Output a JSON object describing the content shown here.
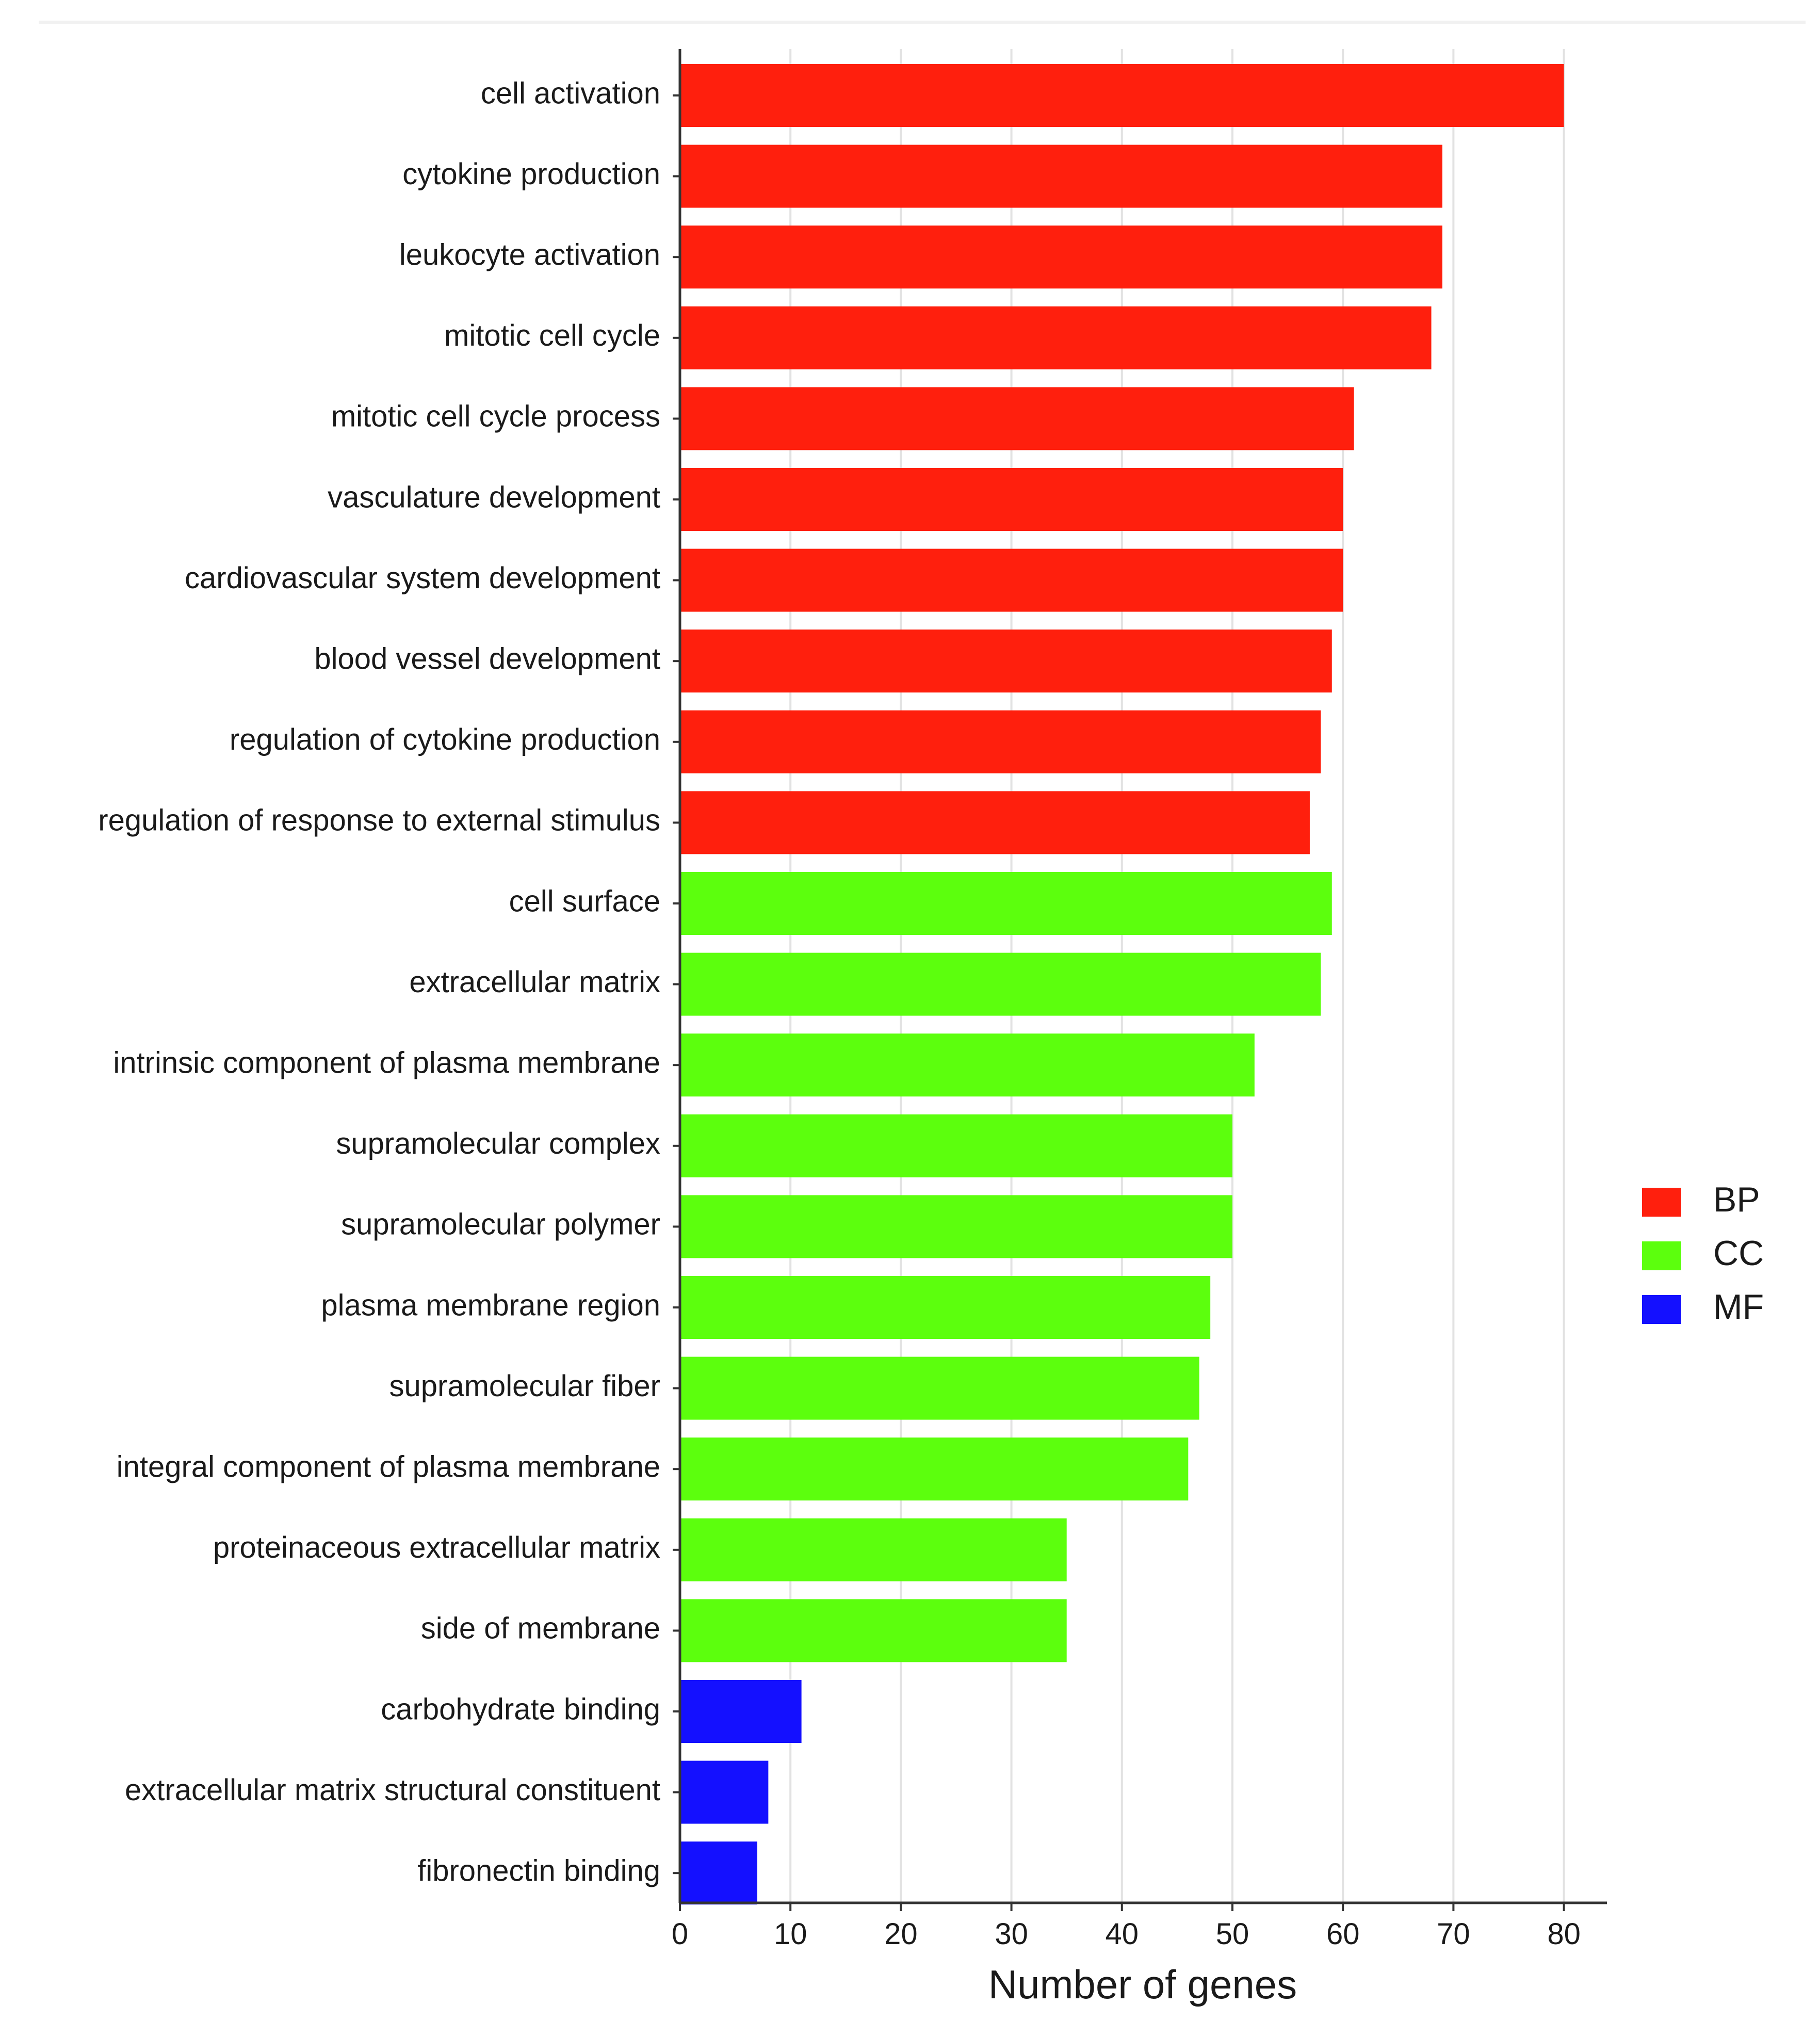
{
  "chart_data": {
    "type": "bar",
    "orientation": "horizontal",
    "title": "",
    "xlabel": "Number of genes",
    "ylabel": "",
    "xlim": [
      0,
      84
    ],
    "xticks": [
      0,
      10,
      20,
      30,
      40,
      50,
      60,
      70,
      80
    ],
    "grid": "vertical",
    "legend_position": "right",
    "legend": [
      {
        "name": "BP",
        "color": "#ff1f0d"
      },
      {
        "name": "CC",
        "color": "#5cff0d"
      },
      {
        "name": "MF",
        "color": "#1410ff"
      }
    ],
    "categories": [
      "cell activation",
      "cytokine production",
      "leukocyte activation",
      "mitotic cell cycle",
      "mitotic cell cycle process",
      "vasculature development",
      "cardiovascular system development",
      "blood vessel development",
      "regulation of cytokine production",
      "regulation of response to external stimulus",
      "cell surface",
      "extracellular matrix",
      "intrinsic component of plasma membrane",
      "supramolecular complex",
      "supramolecular polymer",
      "plasma membrane region",
      "supramolecular fiber",
      "integral component of plasma membrane",
      "proteinaceous extracellular matrix",
      "side of membrane",
      "carbohydrate binding",
      "extracellular matrix structural constituent",
      "fibronectin binding"
    ],
    "values": [
      80,
      69,
      69,
      68,
      61,
      60,
      60,
      59,
      58,
      57,
      59,
      58,
      52,
      50,
      50,
      48,
      47,
      46,
      35,
      35,
      11,
      8,
      7
    ],
    "groups": [
      "BP",
      "BP",
      "BP",
      "BP",
      "BP",
      "BP",
      "BP",
      "BP",
      "BP",
      "BP",
      "CC",
      "CC",
      "CC",
      "CC",
      "CC",
      "CC",
      "CC",
      "CC",
      "CC",
      "CC",
      "MF",
      "MF",
      "MF"
    ]
  }
}
